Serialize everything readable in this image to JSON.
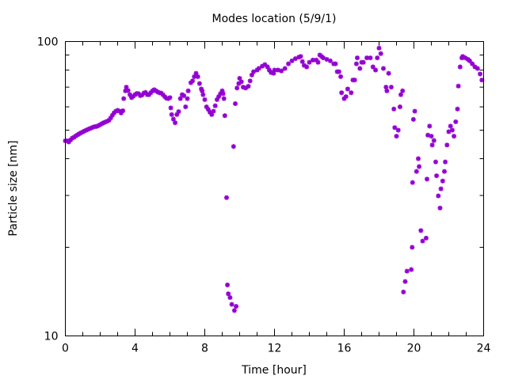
{
  "chart_data": {
    "type": "scatter",
    "title": "Modes location (5/9/1)",
    "xlabel": "Time [hour]",
    "ylabel": "Particle size [nm]",
    "xlim": [
      0,
      24
    ],
    "ylim": [
      10,
      100
    ],
    "yscale": "log",
    "xticks": [
      "0",
      "4",
      "8",
      "12",
      "16",
      "20",
      "24"
    ],
    "yticks": [
      "10",
      "100"
    ],
    "grid": false,
    "legend": "none",
    "color": "#9400D3",
    "points": [
      [
        0,
        46
      ],
      [
        0.1,
        46
      ],
      [
        0.2,
        45.6
      ],
      [
        0.3,
        46.3
      ],
      [
        0.4,
        47
      ],
      [
        0.5,
        47.3
      ],
      [
        0.6,
        47.8
      ],
      [
        0.7,
        48.2
      ],
      [
        0.8,
        48.6
      ],
      [
        0.9,
        49
      ],
      [
        1.0,
        49.3
      ],
      [
        1.1,
        49.7
      ],
      [
        1.2,
        50
      ],
      [
        1.3,
        50.3
      ],
      [
        1.4,
        50.6
      ],
      [
        1.5,
        50.9
      ],
      [
        1.6,
        51.2
      ],
      [
        1.7,
        51.4
      ],
      [
        1.8,
        51.5
      ],
      [
        1.9,
        51.8
      ],
      [
        2.0,
        52.2
      ],
      [
        2.1,
        52.6
      ],
      [
        2.2,
        53
      ],
      [
        2.3,
        53.3
      ],
      [
        2.4,
        53.6
      ],
      [
        2.5,
        54
      ],
      [
        2.6,
        55
      ],
      [
        2.7,
        56.2
      ],
      [
        2.8,
        57.3
      ],
      [
        2.9,
        58
      ],
      [
        3.0,
        58.4
      ],
      [
        3.1,
        58
      ],
      [
        3.2,
        57.2
      ],
      [
        3.3,
        58.2
      ],
      [
        3.35,
        64
      ],
      [
        3.45,
        68
      ],
      [
        3.5,
        70
      ],
      [
        3.6,
        68.2
      ],
      [
        3.7,
        66
      ],
      [
        3.8,
        64.5
      ],
      [
        3.9,
        65.2
      ],
      [
        4.0,
        66
      ],
      [
        4.1,
        66.6
      ],
      [
        4.2,
        66.5
      ],
      [
        4.3,
        65.5
      ],
      [
        4.4,
        65.8
      ],
      [
        4.5,
        66.8
      ],
      [
        4.6,
        67.2
      ],
      [
        4.7,
        66
      ],
      [
        4.8,
        66
      ],
      [
        4.9,
        67
      ],
      [
        5.0,
        68
      ],
      [
        5.1,
        68.6
      ],
      [
        5.2,
        68
      ],
      [
        5.3,
        67.4
      ],
      [
        5.4,
        67
      ],
      [
        5.5,
        66.8
      ],
      [
        5.6,
        66
      ],
      [
        5.7,
        65
      ],
      [
        5.8,
        64.2
      ],
      [
        5.9,
        64
      ],
      [
        6.0,
        64.5
      ],
      [
        6.05,
        59.5
      ],
      [
        6.1,
        56.5
      ],
      [
        6.2,
        54.5
      ],
      [
        6.3,
        53
      ],
      [
        6.4,
        56.5
      ],
      [
        6.5,
        57.8
      ],
      [
        6.6,
        64
      ],
      [
        6.7,
        66
      ],
      [
        6.8,
        65.5
      ],
      [
        6.9,
        60
      ],
      [
        7.0,
        64
      ],
      [
        7.05,
        68
      ],
      [
        7.2,
        72.5
      ],
      [
        7.3,
        73.5
      ],
      [
        7.4,
        76
      ],
      [
        7.5,
        78
      ],
      [
        7.6,
        76
      ],
      [
        7.7,
        72
      ],
      [
        7.8,
        69
      ],
      [
        7.85,
        68
      ],
      [
        7.9,
        66
      ],
      [
        8.0,
        63.5
      ],
      [
        8.1,
        60
      ],
      [
        8.2,
        58.8
      ],
      [
        8.3,
        57.5
      ],
      [
        8.4,
        56.5
      ],
      [
        8.5,
        58
      ],
      [
        8.6,
        60.5
      ],
      [
        8.7,
        63.5
      ],
      [
        8.8,
        65
      ],
      [
        8.9,
        66.5
      ],
      [
        9.0,
        68
      ],
      [
        9.05,
        66.5
      ],
      [
        9.1,
        64
      ],
      [
        9.15,
        56
      ],
      [
        9.25,
        29.5
      ],
      [
        9.3,
        14.9
      ],
      [
        9.35,
        13.9
      ],
      [
        9.45,
        13.5
      ],
      [
        9.55,
        12.8
      ],
      [
        9.65,
        44
      ],
      [
        9.7,
        12.2
      ],
      [
        9.75,
        61.5
      ],
      [
        9.8,
        12.6
      ],
      [
        9.85,
        69.5
      ],
      [
        9.95,
        72
      ],
      [
        10.0,
        75
      ],
      [
        10.1,
        73
      ],
      [
        10.2,
        70
      ],
      [
        10.35,
        69.5
      ],
      [
        10.5,
        70.5
      ],
      [
        10.6,
        73.5
      ],
      [
        10.7,
        77
      ],
      [
        10.8,
        79
      ],
      [
        11.0,
        80
      ],
      [
        11.1,
        81
      ],
      [
        11.3,
        82.5
      ],
      [
        11.45,
        83.5
      ],
      [
        11.6,
        82
      ],
      [
        11.7,
        80
      ],
      [
        11.8,
        78.5
      ],
      [
        11.95,
        78
      ],
      [
        12.0,
        80
      ],
      [
        12.2,
        80
      ],
      [
        12.4,
        79.5
      ],
      [
        12.6,
        81
      ],
      [
        12.8,
        84
      ],
      [
        13.0,
        86
      ],
      [
        13.2,
        87.5
      ],
      [
        13.4,
        88.5
      ],
      [
        13.5,
        89
      ],
      [
        13.6,
        85.5
      ],
      [
        13.7,
        83
      ],
      [
        13.85,
        82
      ],
      [
        14.0,
        85
      ],
      [
        14.2,
        86.5
      ],
      [
        14.4,
        86.5
      ],
      [
        14.5,
        85
      ],
      [
        14.6,
        90
      ],
      [
        14.7,
        89
      ],
      [
        14.8,
        88
      ],
      [
        15.0,
        87
      ],
      [
        15.2,
        86
      ],
      [
        15.4,
        84
      ],
      [
        15.5,
        84
      ],
      [
        15.6,
        79
      ],
      [
        15.7,
        79
      ],
      [
        15.8,
        76
      ],
      [
        15.85,
        67
      ],
      [
        16.0,
        64
      ],
      [
        16.1,
        65
      ],
      [
        16.2,
        69
      ],
      [
        16.4,
        67
      ],
      [
        16.5,
        74
      ],
      [
        16.6,
        74
      ],
      [
        16.7,
        84
      ],
      [
        16.75,
        88
      ],
      [
        16.9,
        81
      ],
      [
        17.0,
        85
      ],
      [
        17.1,
        85
      ],
      [
        17.3,
        88
      ],
      [
        17.5,
        88
      ],
      [
        17.65,
        82
      ],
      [
        17.8,
        80
      ],
      [
        17.9,
        88
      ],
      [
        18.0,
        95
      ],
      [
        18.1,
        91
      ],
      [
        18.25,
        81
      ],
      [
        18.4,
        70
      ],
      [
        18.45,
        68
      ],
      [
        18.55,
        78
      ],
      [
        18.7,
        70
      ],
      [
        18.85,
        59
      ],
      [
        18.9,
        51
      ],
      [
        19.0,
        47.7
      ],
      [
        19.1,
        50
      ],
      [
        19.2,
        60
      ],
      [
        19.25,
        66
      ],
      [
        19.35,
        68
      ],
      [
        19.4,
        14.1
      ],
      [
        19.5,
        15.3
      ],
      [
        19.6,
        16.6
      ],
      [
        19.85,
        16.8
      ],
      [
        19.9,
        20
      ],
      [
        19.92,
        33.2
      ],
      [
        19.97,
        54.4
      ],
      [
        20.05,
        58
      ],
      [
        20.15,
        36.2
      ],
      [
        20.25,
        40
      ],
      [
        20.3,
        37.6
      ],
      [
        20.4,
        22.8
      ],
      [
        20.5,
        21
      ],
      [
        20.7,
        21.5
      ],
      [
        20.75,
        34.1
      ],
      [
        20.8,
        48.1
      ],
      [
        20.9,
        51.6
      ],
      [
        21.0,
        47.7
      ],
      [
        21.05,
        44.5
      ],
      [
        21.15,
        46.1
      ],
      [
        21.25,
        39
      ],
      [
        21.3,
        35
      ],
      [
        21.4,
        29.9
      ],
      [
        21.5,
        27.2
      ],
      [
        21.55,
        31.6
      ],
      [
        21.65,
        33.6
      ],
      [
        21.75,
        36.2
      ],
      [
        21.8,
        39
      ],
      [
        21.9,
        44.5
      ],
      [
        22.0,
        49.4
      ],
      [
        22.1,
        51.6
      ],
      [
        22.2,
        50
      ],
      [
        22.3,
        47.7
      ],
      [
        22.4,
        53.4
      ],
      [
        22.5,
        59
      ],
      [
        22.55,
        70.6
      ],
      [
        22.65,
        82
      ],
      [
        22.75,
        88
      ],
      [
        22.8,
        89
      ],
      [
        22.95,
        88
      ],
      [
        23.1,
        87
      ],
      [
        23.2,
        86
      ],
      [
        23.35,
        84
      ],
      [
        23.5,
        82
      ],
      [
        23.65,
        81
      ],
      [
        23.8,
        77.6
      ],
      [
        23.9,
        74
      ]
    ]
  }
}
